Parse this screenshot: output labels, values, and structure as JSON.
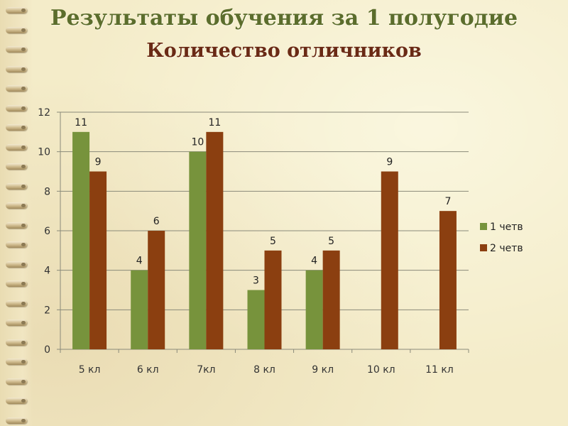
{
  "title": "Результаты обучения за 1 полугодие",
  "subtitle": "Количество отличников",
  "colors": {
    "series_1": "#77933c",
    "series_2": "#8b3f10"
  },
  "chart_data": {
    "type": "bar",
    "categories": [
      "5 кл",
      "6 кл",
      "7кл",
      "8 кл",
      "9 кл",
      "10 кл",
      "11 кл"
    ],
    "series": [
      {
        "name": "1 четв",
        "values": [
          11,
          4,
          10,
          3,
          4,
          null,
          null
        ]
      },
      {
        "name": "2 четв",
        "values": [
          9,
          6,
          11,
          5,
          5,
          9,
          7
        ]
      }
    ],
    "ylim": [
      0,
      12
    ],
    "yticks": [
      0,
      2,
      4,
      6,
      8,
      10,
      12
    ],
    "grid": true,
    "legend": "right",
    "data_labels": true
  }
}
